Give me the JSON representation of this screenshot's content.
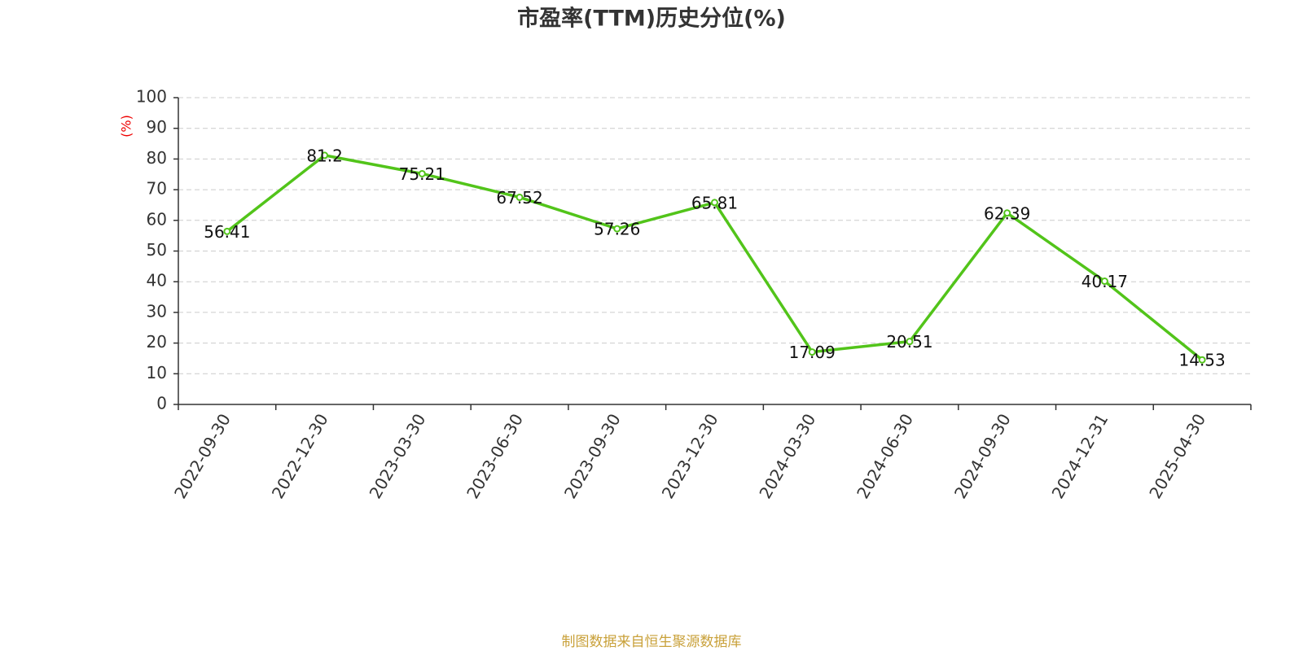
{
  "chart_data": {
    "type": "line",
    "title": "市盈率(TTM)历史分位(%)",
    "y_label": "(%)",
    "categories": [
      "2022-09-30",
      "2022-12-30",
      "2023-03-30",
      "2023-06-30",
      "2023-09-30",
      "2023-12-30",
      "2024-03-30",
      "2024-06-30",
      "2024-09-30",
      "2024-12-31",
      "2025-04-30"
    ],
    "values": [
      56.41,
      81.2,
      75.21,
      67.52,
      57.26,
      65.81,
      17.09,
      20.51,
      62.39,
      40.17,
      14.53
    ],
    "color": "#52c41a",
    "ylim": [
      0,
      100
    ],
    "yticks": [
      0,
      10,
      20,
      30,
      40,
      50,
      60,
      70,
      80,
      90,
      100
    ],
    "grid": true,
    "source": "制图数据来自恒生聚源数据库"
  }
}
